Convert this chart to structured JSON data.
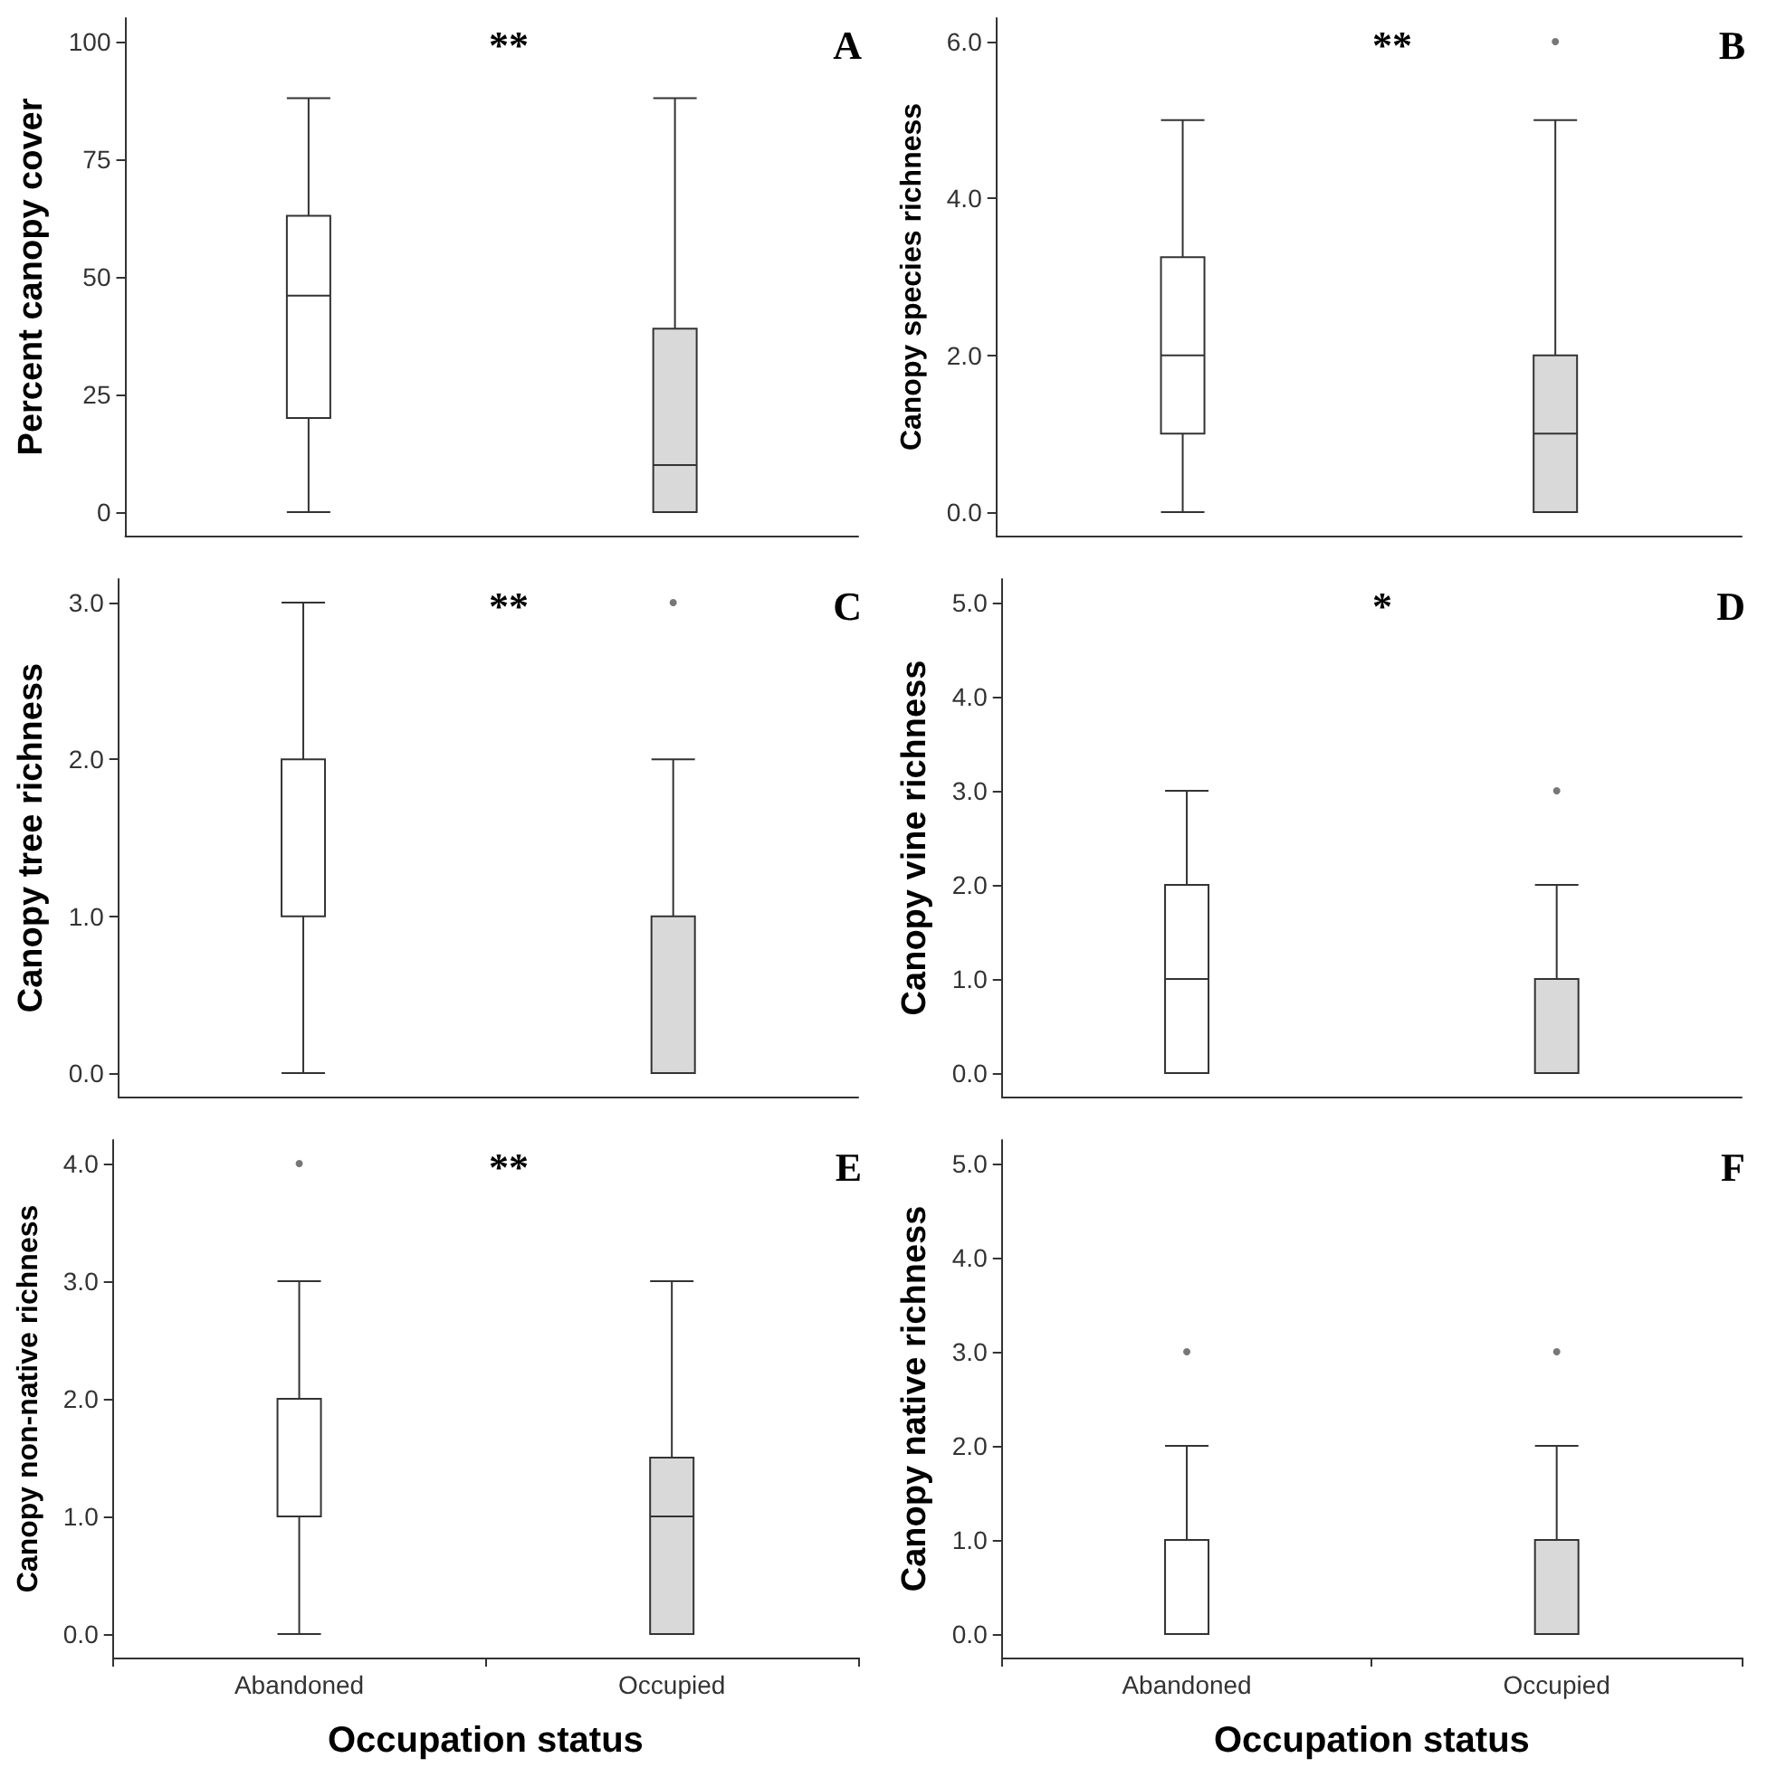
{
  "chart_data": [
    {
      "type": "box",
      "ylabel": "Percent canopy cover",
      "categories": [
        null,
        null
      ],
      "colors": [
        "#ffffff",
        "#d9d9d9"
      ],
      "ylim": [
        -5,
        105
      ],
      "yticks": [
        0,
        25,
        50,
        75,
        100
      ],
      "tick_labels": "y",
      "grid": false,
      "annotations": [
        "**",
        "A"
      ],
      "boxes": [
        {
          "low": 0,
          "q1": 20,
          "median": 46,
          "q3": 63,
          "high": 88
        },
        {
          "low": 0,
          "q1": 0,
          "median": 10,
          "q3": 39,
          "high": 88
        }
      ]
    },
    {
      "type": "box",
      "ylabel": "Canopy species richness",
      "categories": [
        null,
        null
      ],
      "colors": [
        "#ffffff",
        "#d9d9d9"
      ],
      "ylim": [
        -0.3,
        6.3
      ],
      "yticks": [
        {
          "value": 0,
          "label": "0.0"
        },
        {
          "value": 2,
          "label": "2.0"
        },
        {
          "value": 4,
          "label": "4.0"
        },
        {
          "value": 6,
          "label": "6.0"
        }
      ],
      "tick_labels": "y",
      "grid": false,
      "annotations": [
        "**",
        "B"
      ],
      "boxes": [
        {
          "low": 0,
          "q1": 1,
          "median": 2,
          "q3": 3.25,
          "high": 5
        },
        {
          "low": 0,
          "q1": 0,
          "median": 1,
          "q3": 2,
          "high": 5,
          "outliers": [
            6
          ]
        }
      ]
    },
    {
      "type": "box",
      "ylabel": "Canopy tree richness",
      "categories": [
        null,
        null
      ],
      "colors": [
        "#ffffff",
        "#d9d9d9"
      ],
      "ylim": [
        -0.15,
        3.15
      ],
      "yticks": [
        {
          "value": 0,
          "label": "0.0"
        },
        {
          "value": 1,
          "label": "1.0"
        },
        {
          "value": 2,
          "label": "2.0"
        },
        {
          "value": 3,
          "label": "3.0"
        }
      ],
      "tick_labels": "y",
      "grid": false,
      "annotations": [
        "**",
        "C"
      ],
      "boxes": [
        {
          "low": 0,
          "q1": 1,
          "median": 1,
          "q3": 2,
          "high": 3
        },
        {
          "low": 0,
          "q1": 0,
          "median": 1,
          "q3": 1,
          "high": 2,
          "outliers": [
            3
          ]
        }
      ]
    },
    {
      "type": "box",
      "ylabel": "Canopy vine richness",
      "categories": [
        null,
        null
      ],
      "colors": [
        "#ffffff",
        "#d9d9d9"
      ],
      "ylim": [
        -0.25,
        5.25
      ],
      "yticks": [
        {
          "value": 0,
          "label": "0.0"
        },
        {
          "value": 1,
          "label": "1.0"
        },
        {
          "value": 2,
          "label": "2.0"
        },
        {
          "value": 3,
          "label": "3.0"
        },
        {
          "value": 4,
          "label": "4.0"
        },
        {
          "value": 5,
          "label": "5.0"
        }
      ],
      "tick_labels": "y",
      "grid": false,
      "annotations": [
        "*",
        "D"
      ],
      "boxes": [
        {
          "low": 0,
          "q1": 0,
          "median": 1,
          "q3": 2,
          "high": 3
        },
        {
          "low": 0,
          "q1": 0,
          "median": 0,
          "q3": 1,
          "high": 2,
          "outliers": [
            3
          ]
        }
      ]
    },
    {
      "type": "box",
      "xlabel": "Occupation status",
      "ylabel": "Canopy non-native richness",
      "categories": [
        "Abandoned",
        "Occupied"
      ],
      "colors": [
        "#ffffff",
        "#d9d9d9"
      ],
      "ylim": [
        -0.2,
        4.2
      ],
      "yticks": [
        {
          "value": 0,
          "label": "0.0"
        },
        {
          "value": 1,
          "label": "1.0"
        },
        {
          "value": 2,
          "label": "2.0"
        },
        {
          "value": 3,
          "label": "3.0"
        },
        {
          "value": 4,
          "label": "4.0"
        }
      ],
      "grid": false,
      "annotations": [
        "**",
        "E"
      ],
      "boxes": [
        {
          "low": 0,
          "q1": 1,
          "median": 2,
          "q3": 2,
          "high": 3,
          "outliers": [
            4
          ]
        },
        {
          "low": 0,
          "q1": 0,
          "median": 1,
          "q3": 1.5,
          "high": 3
        }
      ]
    },
    {
      "type": "box",
      "xlabel": "Occupation status",
      "ylabel": "Canopy native richness",
      "categories": [
        "Abandoned",
        "Occupied"
      ],
      "colors": [
        "#ffffff",
        "#d9d9d9"
      ],
      "ylim": [
        -0.25,
        5.25
      ],
      "yticks": [
        {
          "value": 0,
          "label": "0.0"
        },
        {
          "value": 1,
          "label": "1.0"
        },
        {
          "value": 2,
          "label": "2.0"
        },
        {
          "value": 3,
          "label": "3.0"
        },
        {
          "value": 4,
          "label": "4.0"
        },
        {
          "value": 5,
          "label": "5.0"
        }
      ],
      "grid": false,
      "annotations": [
        "F"
      ],
      "boxes": [
        {
          "low": 0,
          "q1": 0,
          "median": 0,
          "q3": 1,
          "high": 2,
          "outliers": [
            3
          ]
        },
        {
          "low": 0,
          "q1": 0,
          "median": 0,
          "q3": 1,
          "high": 2,
          "outliers": [
            3
          ]
        }
      ]
    }
  ]
}
